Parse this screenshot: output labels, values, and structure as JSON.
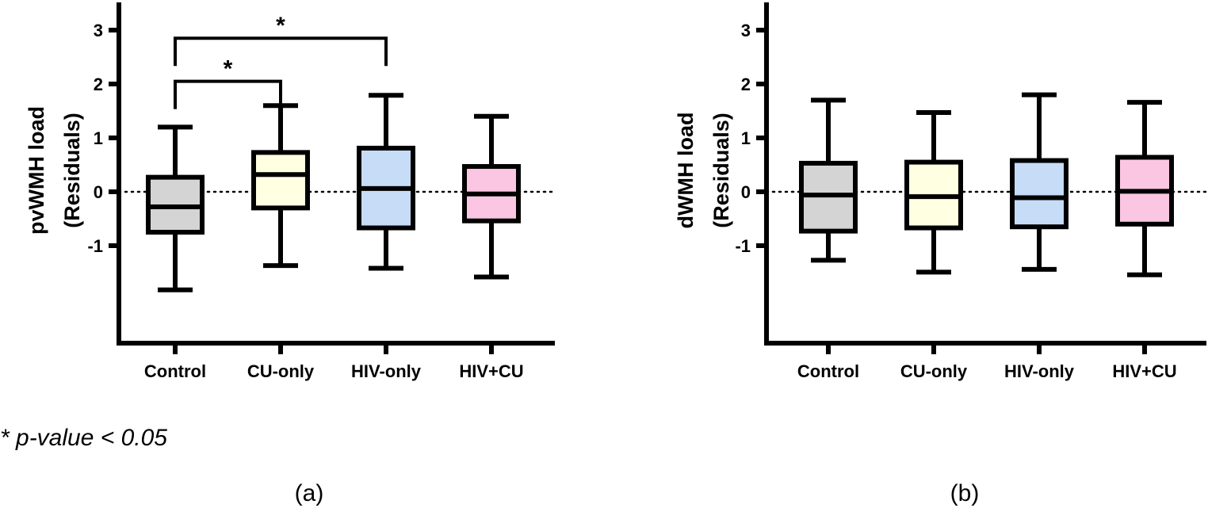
{
  "chart_data": [
    {
      "type": "box",
      "panel_label": "(a)",
      "ylabel_line1": "pvWMH load",
      "ylabel_line2": "(Residuals)",
      "categories": [
        "Control",
        "CU-only",
        "HIV-only",
        "HIV+CU"
      ],
      "ylim": [
        -2.8,
        3.5
      ],
      "yticks": [
        3,
        2,
        1,
        0,
        -1
      ],
      "ytick_labels": [
        "3",
        "2",
        "1",
        "0",
        "-1"
      ],
      "reference_line": 0,
      "boxes": [
        {
          "category": "Control",
          "min": -1.82,
          "q1": -0.75,
          "median": -0.28,
          "q3": 0.27,
          "max": 1.2,
          "color": "#d4d4d4"
        },
        {
          "category": "CU-only",
          "min": -1.37,
          "q1": -0.3,
          "median": 0.32,
          "q3": 0.73,
          "max": 1.6,
          "color": "#ffffe1"
        },
        {
          "category": "HIV-only",
          "min": -1.42,
          "q1": -0.67,
          "median": 0.06,
          "q3": 0.81,
          "max": 1.79,
          "color": "#c6dcf7"
        },
        {
          "category": "HIV+CU",
          "min": -1.58,
          "q1": -0.54,
          "median": -0.04,
          "q3": 0.47,
          "max": 1.4,
          "color": "#fbc6e1"
        }
      ],
      "significance": [
        {
          "from": "Control",
          "to": "HIV-only",
          "y": 2.85,
          "label": "*"
        },
        {
          "from": "Control",
          "to": "CU-only",
          "y": 2.05,
          "label": "*"
        }
      ]
    },
    {
      "type": "box",
      "panel_label": "(b)",
      "ylabel_line1": "dWMH load",
      "ylabel_line2": "(Residuals)",
      "categories": [
        "Control",
        "CU-only",
        "HIV-only",
        "HIV+CU"
      ],
      "ylim": [
        -2.8,
        3.5
      ],
      "yticks": [
        3,
        2,
        1,
        0,
        -1
      ],
      "ytick_labels": [
        "3",
        "2",
        "1",
        "0",
        "-1"
      ],
      "reference_line": 0,
      "boxes": [
        {
          "category": "Control",
          "min": -1.27,
          "q1": -0.73,
          "median": -0.06,
          "q3": 0.53,
          "max": 1.7,
          "color": "#d4d4d4"
        },
        {
          "category": "CU-only",
          "min": -1.49,
          "q1": -0.67,
          "median": -0.09,
          "q3": 0.55,
          "max": 1.47,
          "color": "#ffffe1"
        },
        {
          "category": "HIV-only",
          "min": -1.44,
          "q1": -0.65,
          "median": -0.11,
          "q3": 0.58,
          "max": 1.8,
          "color": "#c6dcf7"
        },
        {
          "category": "HIV+CU",
          "min": -1.54,
          "q1": -0.6,
          "median": 0.01,
          "q3": 0.64,
          "max": 1.66,
          "color": "#fbc6e1"
        }
      ],
      "significance": []
    }
  ],
  "footnote": "* p-value < 0.05"
}
